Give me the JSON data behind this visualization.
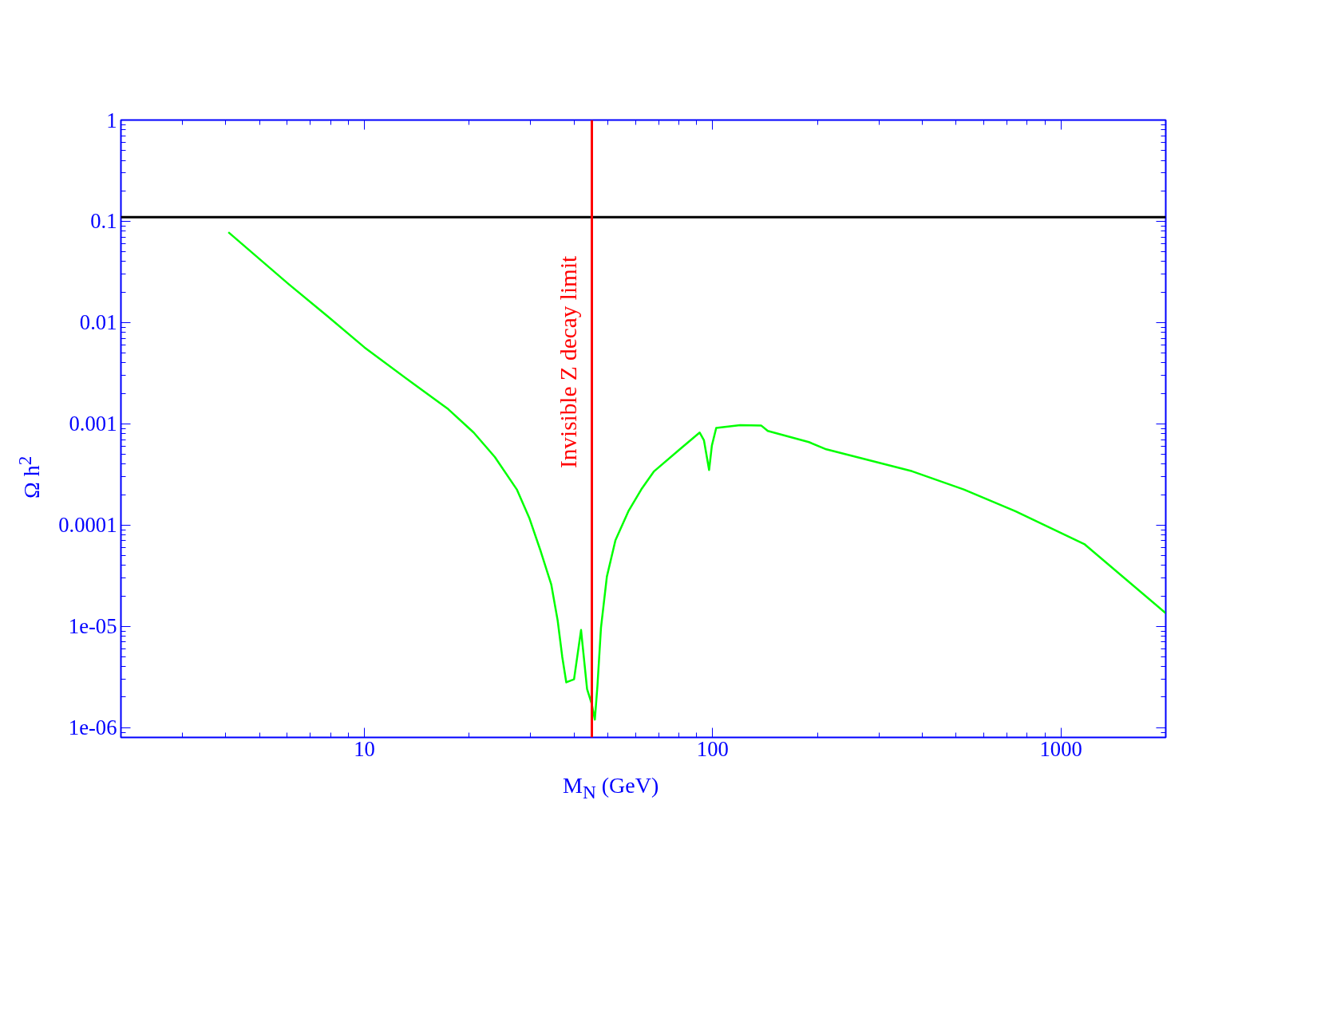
{
  "chart_data": {
    "type": "line",
    "xlabel": "M$_{N}$ (GeV)",
    "ylabel": "Ω h$^{2}$",
    "log": "xy",
    "xlim": [
      2,
      2000
    ],
    "ylim": [
      8e-07,
      1
    ],
    "xticks": [
      10,
      100,
      1000
    ],
    "yticks": [
      1,
      0.1,
      0.01,
      0.001,
      0.0001,
      {
        "value": 1e-05,
        "label": "1e-05"
      },
      {
        "value": 1e-06,
        "label": "1e-06"
      }
    ],
    "grid": false,
    "marker": "none",
    "line_style": "solid",
    "series": [
      {
        "color": "#00ff00",
        "x": [
          4.07,
          6.06,
          7.83,
          10,
          13.8,
          17.4,
          20.6,
          23.7,
          27.4,
          29.8,
          32.1,
          34.4,
          35.9,
          37.0,
          38.0,
          40.0,
          41.9,
          43.6,
          45,
          45.9,
          46.7,
          47.8,
          49.7,
          52.6,
          57.3,
          62.4,
          67.9,
          80.5,
          91.8,
          94.4,
          97.7,
          99.5,
          102.4,
          120,
          138,
          144,
          189,
          212,
          374,
          526,
          740,
          1167,
          2000
        ],
        "values": [
          0.078,
          0.024,
          0.0116,
          0.0057,
          0.0025,
          0.0014,
          0.00082,
          0.00047,
          0.000225,
          0.000116,
          5.5e-05,
          2.6e-05,
          1.14e-05,
          5e-06,
          2.8e-06,
          3e-06,
          9.2e-06,
          2.4e-06,
          1.7e-06,
          1.2e-06,
          2.6e-06,
          9.7e-06,
          3.1e-05,
          7.1e-05,
          0.000137,
          0.000225,
          0.00034,
          0.00056,
          0.00082,
          0.00069,
          0.00035,
          0.00061,
          0.00091,
          0.00097,
          0.00096,
          0.00085,
          0.00066,
          0.00056,
          0.00034,
          0.000225,
          0.000137,
          6.5e-05,
          1.35e-05
        ]
      }
    ],
    "ref_lines": [
      {
        "axis": "y",
        "value": 0.11,
        "color": "#000000",
        "line_style": "solid"
      },
      {
        "axis": "x",
        "value": 45,
        "label": "Invisible Z decay limit",
        "color": "#ff0000",
        "line_style": "solid"
      }
    ]
  }
}
